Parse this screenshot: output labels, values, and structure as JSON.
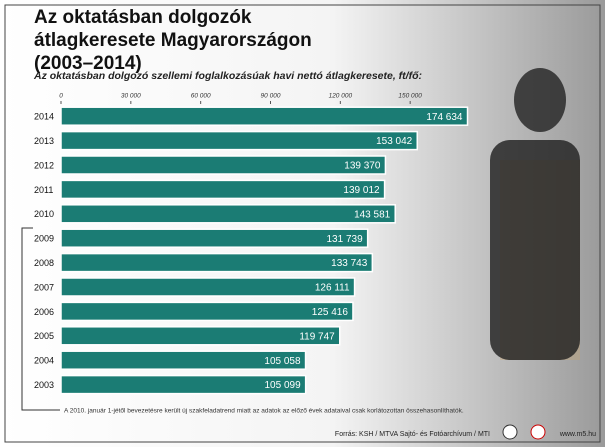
{
  "chart_data": {
    "type": "bar",
    "orientation": "horizontal",
    "title": "Az oktatásban dolgozók átlagkeresete Magyarországon (2003–2014)",
    "subtitle": "Az oktatásban dolgozó szellemi foglalkozásúak havi nettó átlagkeresete, ft/fő:",
    "categories": [
      "2014",
      "2013",
      "2012",
      "2011",
      "2010",
      "2009",
      "2008",
      "2007",
      "2006",
      "2005",
      "2004",
      "2003"
    ],
    "values": [
      174634,
      153042,
      139370,
      139012,
      143581,
      131739,
      133743,
      126111,
      125416,
      119747,
      105058,
      105099
    ],
    "value_labels": [
      "174 634",
      "153 042",
      "139 370",
      "139 012",
      "143 581",
      "131 739",
      "133 743",
      "126 111",
      "125 416",
      "119 747",
      "105 058",
      "105 099"
    ],
    "color": "#1b7c74",
    "xlim": [
      0,
      180000
    ],
    "xticks": [
      0,
      {
        "value": 30000,
        "label": "30 000"
      },
      {
        "value": 60000,
        "label": "60 000"
      },
      {
        "value": 90000,
        "label": "90 000"
      },
      {
        "value": 120000,
        "label": "120 000"
      },
      {
        "value": 150000,
        "label": "150 000"
      }
    ],
    "grid": false,
    "footnote": "A 2010. január 1-jétől bevezetésre került új szakfeladatrend miatt az adatok az előző évek adataival csak korlátozottan összehasonlíthatók.",
    "source": "Forrás: KSH / MTVA Sajtó- és Fotóarchívum / MTI",
    "website": "www.m5.hu"
  }
}
